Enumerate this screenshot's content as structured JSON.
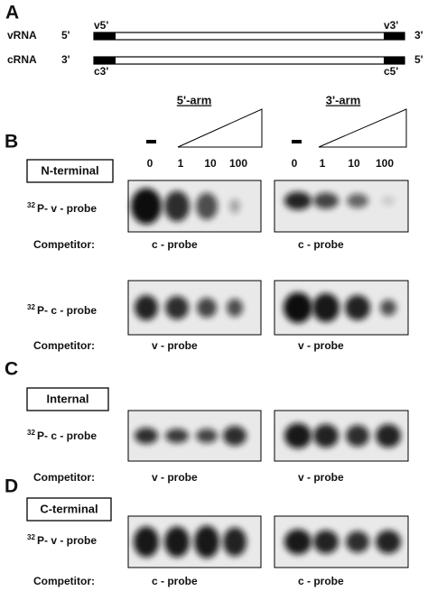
{
  "panel_a": {
    "letter": "A",
    "rows": [
      {
        "name": "vRNA",
        "left_end": "5'",
        "right_end": "3'",
        "left_tag": "v5'",
        "right_tag": "v3'"
      },
      {
        "name": "cRNA",
        "left_end": "3'",
        "right_end": "5'",
        "left_tag": "c3'",
        "right_tag": "c5'"
      }
    ]
  },
  "arms": [
    "5'-arm",
    "3'-arm"
  ],
  "no_protein": [
    "-",
    "-"
  ],
  "lane_labels": [
    "0",
    "1",
    "10",
    "100"
  ],
  "sections": [
    {
      "letter": "B",
      "domain": "N-terminal",
      "blots": [
        {
          "isotope": "32",
          "probe": "P- v - probe",
          "competitor_label": "Competitor:",
          "competitor": "c - probe"
        },
        {
          "isotope": "32",
          "probe": "P- c - probe",
          "competitor_label": "Competitor:",
          "competitor": "v - probe"
        }
      ]
    },
    {
      "letter": "C",
      "domain": "Internal",
      "blots": [
        {
          "isotope": "32",
          "probe": "P- c - probe",
          "competitor_label": "Competitor:",
          "competitor": "v - probe"
        }
      ]
    },
    {
      "letter": "D",
      "domain": "C-terminal",
      "blots": [
        {
          "isotope": "32",
          "probe": "P- v - probe",
          "competitor_label": "Competitor:",
          "competitor": "c - probe"
        }
      ]
    }
  ]
}
